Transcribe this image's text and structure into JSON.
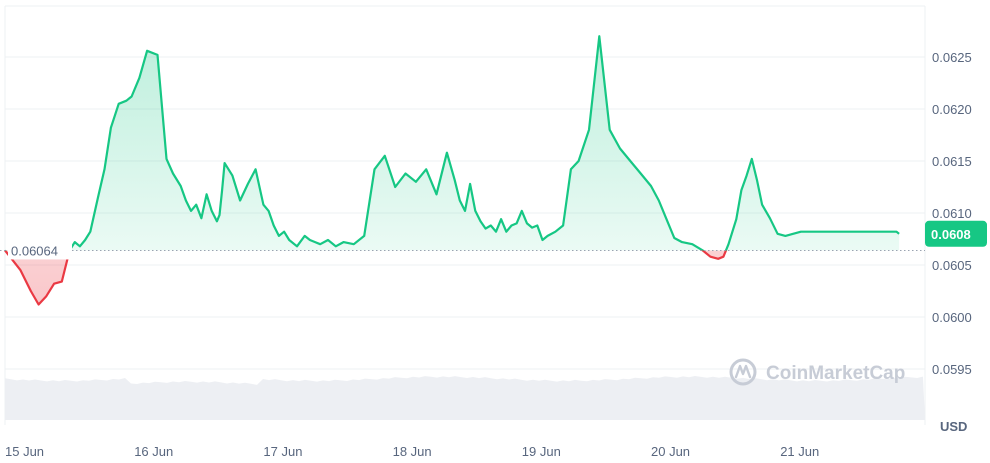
{
  "chart_data": {
    "type": "area",
    "x_tick_labels": [
      "15 Jun",
      "16 Jun",
      "17 Jun",
      "18 Jun",
      "19 Jun",
      "20 Jun",
      "21 Jun"
    ],
    "y_tick_labels": [
      "0.0595",
      "0.0600",
      "0.0605",
      "0.0610",
      "0.0615",
      "0.0620",
      "0.0625"
    ],
    "y_ticks": [
      0.0595,
      0.06,
      0.0605,
      0.061,
      0.0615,
      0.062,
      0.0625
    ],
    "ylim": [
      0.05925,
      0.06295
    ],
    "unit_label": "USD",
    "reference_price": 0.06064,
    "reference_label": "0.06064",
    "current_price": 0.0608,
    "current_price_label": "0.0608",
    "watermark": "CoinMarketCap",
    "grid": true,
    "colors": {
      "up": "#16c784",
      "down": "#ea3943",
      "axis_text": "#58667e",
      "grid": "#eef0f3",
      "volume": "#edeff3"
    },
    "x_start": "15 Jun 00:00",
    "x_end": "21 Jun 22:00",
    "x_day_start": [
      0,
      1,
      2,
      3,
      4,
      5,
      6
    ],
    "series": [
      {
        "x_day": [
          0,
          0.12,
          0.2,
          0.26,
          0.32,
          0.38,
          0.44,
          0.5,
          0.54,
          0.58,
          0.62,
          0.66,
          0.72,
          0.77,
          0.82,
          0.88,
          0.94,
          0.98,
          1.04,
          1.1,
          1.18,
          1.25,
          1.3,
          1.36,
          1.4,
          1.44,
          1.48,
          1.52,
          1.56,
          1.6,
          1.64,
          1.66,
          1.68,
          1.7,
          1.76,
          1.82,
          1.88,
          1.94,
          2.0,
          2.04,
          2.08,
          2.12,
          2.16,
          2.2,
          2.26,
          2.32,
          2.36,
          2.4,
          2.44,
          2.5,
          2.56,
          2.62,
          2.7,
          2.78,
          2.86,
          2.94,
          3.02,
          3.1,
          3.18,
          3.26,
          3.34,
          3.42,
          3.48,
          3.52,
          3.56,
          3.6,
          3.64,
          3.68,
          3.72,
          3.76,
          3.8,
          3.84,
          3.88,
          3.92,
          3.96,
          4.0,
          4.04,
          4.08,
          4.12,
          4.16,
          4.2,
          4.26,
          4.32,
          4.38,
          4.44,
          4.52,
          4.6,
          4.68,
          4.76,
          4.84,
          4.92,
          5.0,
          5.06,
          5.12,
          5.18,
          5.24,
          5.32,
          5.4,
          5.46,
          5.52,
          5.56,
          5.6,
          5.63,
          5.66,
          5.7,
          5.74,
          5.78,
          5.82,
          5.86,
          5.92,
          5.98,
          6.04,
          6.1,
          6.16,
          6.2,
          6.24,
          6.28,
          6.32,
          6.36,
          6.4,
          6.44,
          6.48,
          6.52,
          6.56,
          6.6,
          6.66,
          6.72,
          6.78,
          6.84,
          6.9,
          6.92
        ],
        "values": [
          0.06064,
          0.06045,
          0.06025,
          0.06012,
          0.0602,
          0.06032,
          0.06034,
          0.06064,
          0.06072,
          0.06068,
          0.06074,
          0.06082,
          0.06115,
          0.06142,
          0.06182,
          0.06205,
          0.06208,
          0.06212,
          0.0623,
          0.06256,
          0.06252,
          0.06152,
          0.06138,
          0.06126,
          0.06112,
          0.06102,
          0.06108,
          0.06095,
          0.06118,
          0.06102,
          0.06092,
          0.06098,
          0.06122,
          0.06148,
          0.06136,
          0.06112,
          0.06128,
          0.06142,
          0.06108,
          0.06102,
          0.06088,
          0.06078,
          0.06082,
          0.06074,
          0.06068,
          0.06078,
          0.06074,
          0.06072,
          0.0607,
          0.06074,
          0.06068,
          0.06072,
          0.0607,
          0.06078,
          0.06142,
          0.06155,
          0.06125,
          0.06138,
          0.0613,
          0.06142,
          0.06118,
          0.06158,
          0.06132,
          0.06112,
          0.06102,
          0.06128,
          0.06102,
          0.06092,
          0.06085,
          0.06088,
          0.06082,
          0.06094,
          0.06082,
          0.06088,
          0.0609,
          0.06102,
          0.0609,
          0.06086,
          0.06088,
          0.06074,
          0.06078,
          0.06082,
          0.06088,
          0.06142,
          0.0615,
          0.0618,
          0.0627,
          0.0618,
          0.06162,
          0.0615,
          0.06138,
          0.06126,
          0.06112,
          0.06094,
          0.06076,
          0.06072,
          0.0607,
          0.06064,
          0.06058,
          0.06056,
          0.06058,
          0.0607,
          0.06082,
          0.06094,
          0.06122,
          0.06136,
          0.06152,
          0.06132,
          0.06108,
          0.06095,
          0.0608,
          0.06078,
          0.0608,
          0.06082,
          0.06082,
          0.06082,
          0.06082,
          0.06082,
          0.06082,
          0.06082,
          0.06082,
          0.06082,
          0.06082,
          0.06082,
          0.06082,
          0.06082,
          0.06082,
          0.06082,
          0.06082,
          0.06082,
          0.0608
        ]
      }
    ]
  }
}
